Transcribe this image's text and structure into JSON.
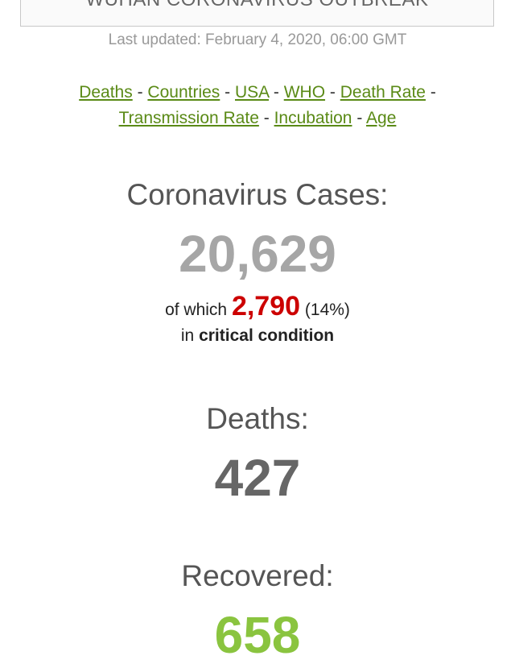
{
  "header": {
    "title": "WUHAN CORONAVIRUS OUTBREAK",
    "last_updated": "Last updated: February 4, 2020, 06:00 GMT"
  },
  "nav": {
    "links": [
      "Deaths",
      "Countries",
      "USA",
      "WHO",
      "Death Rate",
      "Transmission Rate",
      "Incubation",
      "Age"
    ],
    "separator": "-"
  },
  "cases": {
    "label": "Coronavirus Cases:",
    "value": "20,629",
    "of_which": "of which",
    "critical_value": "2,790",
    "critical_pct": "(14%)",
    "in": "in",
    "critical_text": "critical condition"
  },
  "deaths": {
    "label": "Deaths:",
    "value": "427"
  },
  "recovered": {
    "label": "Recovered:",
    "value": "658"
  },
  "colors": {
    "cases": "#a6a6a6",
    "deaths": "#666666",
    "recovered": "#8ac43f",
    "critical": "#cc0000",
    "link": "#5a8a16"
  }
}
